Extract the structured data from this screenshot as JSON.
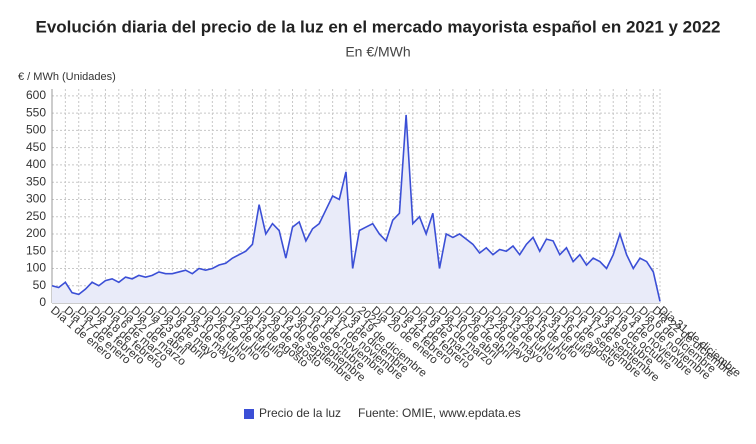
{
  "chart_data": {
    "type": "area",
    "title": "Evolución diaria del precio de la luz en el mercado mayorista español en 2021 y 2022",
    "subtitle": "En €/MWh",
    "y_label": "€ / MWh (Unidades)",
    "source": "Fuente: OMIE, www.epdata.es",
    "categories": [
      "Día 1 de enero",
      null,
      "Día 17 de enero",
      null,
      "Día 2 de febrero",
      null,
      "Día 18 de febrero",
      null,
      "Día 6 de marzo",
      null,
      "Día 22 de marzo",
      null,
      "Día 7 de abril",
      null,
      "Día 23 de abril",
      null,
      "Día 9 de mayo",
      null,
      "Día 25 de mayo",
      null,
      "Día 10 de junio",
      null,
      "Día 26 de junio",
      null,
      "Día 12 de julio",
      null,
      "Día 28 de julio",
      null,
      "Día 13 de agosto",
      null,
      "Día 29 de agosto",
      null,
      "Día 14 de septiembre",
      null,
      "Día 30 de septiembre",
      null,
      "Día 16 de octubre",
      null,
      "Día 1 de noviembre",
      null,
      "Día 17 de noviembre",
      null,
      "Día 3 de diciembre",
      null,
      "Día 19 de diciembre",
      null,
      "2022",
      null,
      "Día 20 de enero",
      null,
      "Día 5 de febrero",
      null,
      "Día 21 de febrero",
      null,
      "Día 9 de marzo",
      null,
      "Día 25 de marzo",
      null,
      "Día 10 de abril",
      null,
      "Día 26 de abril",
      null,
      "Día 12 de mayo",
      null,
      "Día 28 de mayo",
      null,
      "Día 13 de junio",
      null,
      "Día 29 de junio",
      null,
      "Día 15 de julio",
      null,
      "Día 31 de julio",
      null,
      "Día 16 de agosto",
      null,
      "Día 1 de septiembre",
      null,
      "Día 17 de septiembre",
      null,
      "Día 3 de octubre",
      null,
      "Día 19 de octubre",
      null,
      "Día 4 de noviembre",
      null,
      "Día 20 de noviembre",
      null,
      "Día 6 de diciembre",
      null,
      "Día 22 de diciembre",
      "Día 31 de diciembre"
    ],
    "series": [
      {
        "name": "Precio de la luz",
        "color": "#3b4fd6",
        "fill": "#e9ebf9",
        "values": [
          50,
          45,
          60,
          30,
          25,
          40,
          60,
          50,
          65,
          70,
          60,
          75,
          70,
          80,
          75,
          80,
          90,
          85,
          85,
          90,
          95,
          85,
          100,
          95,
          100,
          110,
          115,
          130,
          140,
          150,
          170,
          285,
          200,
          230,
          210,
          130,
          220,
          235,
          180,
          215,
          230,
          270,
          310,
          300,
          380,
          100,
          210,
          220,
          230,
          200,
          180,
          240,
          260,
          545,
          230,
          250,
          200,
          260,
          100,
          200,
          190,
          200,
          185,
          170,
          145,
          160,
          140,
          155,
          150,
          165,
          140,
          170,
          190,
          150,
          185,
          180,
          140,
          160,
          120,
          140,
          110,
          130,
          120,
          100,
          140,
          200,
          140,
          100,
          130,
          120,
          90,
          5
        ]
      }
    ],
    "ylim": [
      0,
      620
    ],
    "yticks": [
      0,
      50,
      100,
      150,
      200,
      250,
      300,
      350,
      400,
      450,
      500,
      550,
      600
    ],
    "grid": true
  }
}
